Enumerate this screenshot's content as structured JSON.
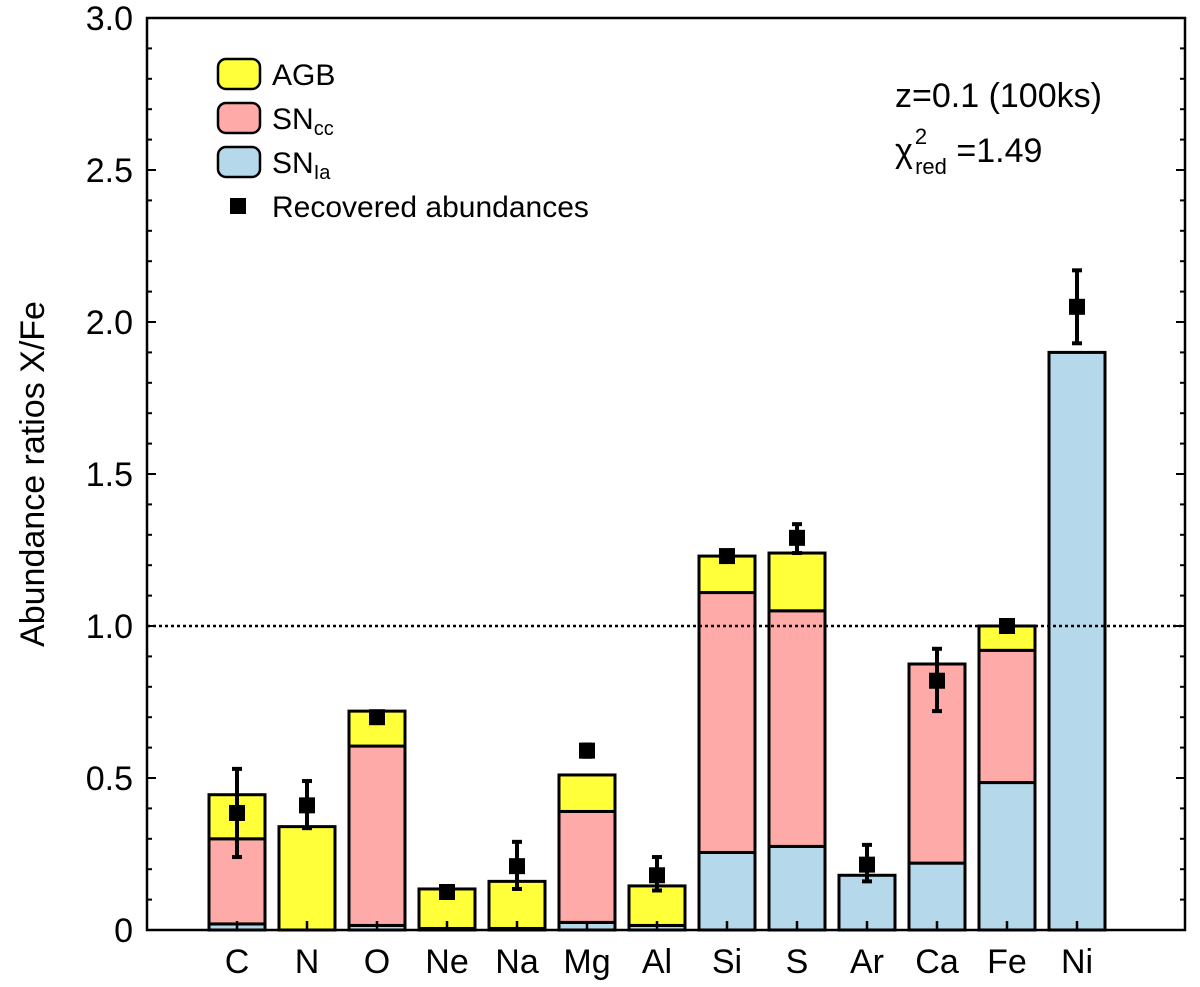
{
  "chart_data": {
    "type": "bar",
    "stacked": true,
    "title": "",
    "xlabel": "",
    "ylabel": "Abundance ratios X/Fe",
    "ylim": [
      0,
      3.0
    ],
    "yticks": [
      "0",
      "0.5",
      "1.0",
      "1.5",
      "2.0",
      "2.5",
      "3.0"
    ],
    "categories": [
      "C",
      "N",
      "O",
      "Ne",
      "Na",
      "Mg",
      "Al",
      "Si",
      "S",
      "Ar",
      "Ca",
      "Fe",
      "Ni"
    ],
    "reference_line": {
      "y": 1.0,
      "style": "dotted"
    },
    "series": [
      {
        "name": "SNIa",
        "color": "#b5d8ea",
        "values": [
          0.02,
          0.0,
          0.015,
          0.005,
          0.005,
          0.025,
          0.015,
          0.255,
          0.275,
          0.18,
          0.22,
          0.485,
          1.9
        ]
      },
      {
        "name": "SNcc",
        "color": "#fdaaa8",
        "values": [
          0.28,
          0.0,
          0.59,
          0.0,
          0.0,
          0.365,
          0.0,
          0.855,
          0.775,
          0.0,
          0.655,
          0.435,
          0.0
        ]
      },
      {
        "name": "AGB",
        "color": "#ffff3a",
        "values": [
          0.145,
          0.34,
          0.115,
          0.13,
          0.155,
          0.12,
          0.13,
          0.12,
          0.19,
          0.0,
          0.0,
          0.08,
          0.0
        ]
      }
    ],
    "recovered": {
      "name": "Recovered abundances",
      "values": [
        0.385,
        0.41,
        0.7,
        0.125,
        0.21,
        0.59,
        0.18,
        1.23,
        1.29,
        0.215,
        0.82,
        1.0,
        2.05
      ],
      "err_low": [
        0.24,
        0.335,
        0.685,
        0.115,
        0.135,
        0.57,
        0.13,
        1.215,
        1.24,
        0.16,
        0.72,
        0.99,
        1.93
      ],
      "err_high": [
        0.53,
        0.49,
        0.715,
        0.135,
        0.29,
        0.61,
        0.24,
        1.245,
        1.335,
        0.28,
        0.925,
        1.01,
        2.17
      ]
    },
    "legend": {
      "placement": "top-left",
      "entries": [
        {
          "label": "AGB",
          "sub": "",
          "color": "#ffff3a"
        },
        {
          "label": "SN",
          "sub": "cc",
          "color": "#fdaaa8"
        },
        {
          "label": "SN",
          "sub": "Ia",
          "color": "#b5d8ea"
        },
        {
          "label": "Recovered abundances",
          "sub": "",
          "color": "#000000"
        }
      ]
    },
    "annotations": {
      "line1": "z=0.1 (100ks)",
      "chi_symbol": "χ",
      "chi_sup": "2",
      "chi_sub": "red",
      "chi_value": " =1.49"
    },
    "grid": false
  }
}
